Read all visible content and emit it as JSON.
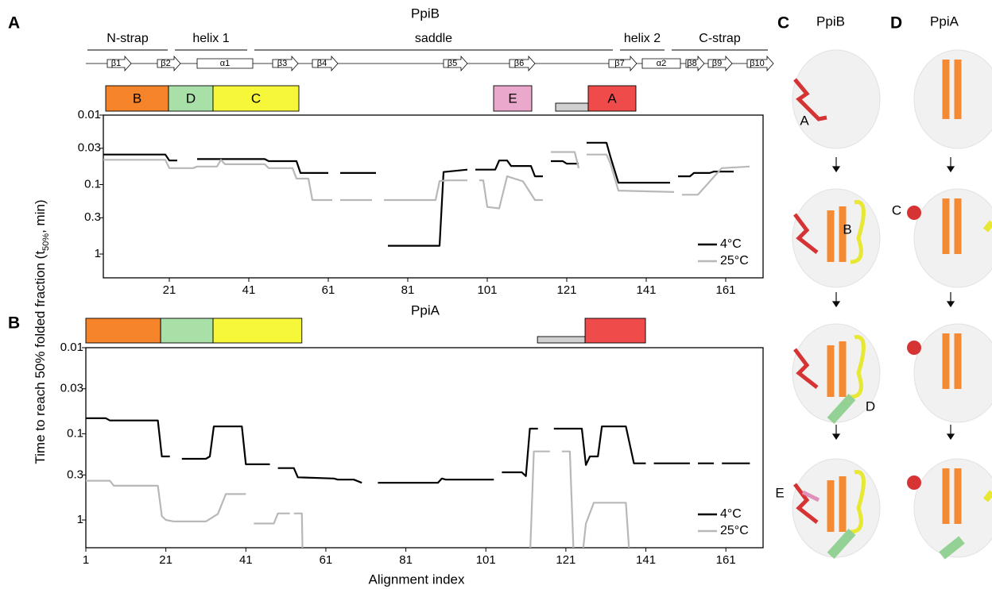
{
  "panel_labels": [
    "A",
    "B",
    "C",
    "D"
  ],
  "chart_data": [
    {
      "type": "line",
      "title": "PpiB",
      "xlabel": "PpiA",
      "ylabel": {
        "text": "Time to reach 50% folded fraction (t",
        "subscript": "50%",
        "suffix": ", min)"
      },
      "xlim": [
        4.4,
        170.4
      ],
      "xticks": [
        21,
        41,
        61,
        81,
        101,
        121,
        141,
        161
      ],
      "ylim": [
        0.01,
        2.2
      ],
      "yticks": [
        0.01,
        0.03,
        0.1,
        0.3,
        1
      ],
      "log_y": true,
      "invert_y": true,
      "legend": "lower right",
      "topology": {
        "domains": [
          {
            "label": "N-strap",
            "range": [
              0,
              21
            ]
          },
          {
            "label": "helix 1",
            "range": [
              22,
              41
            ]
          },
          {
            "label": "saddle",
            "range": [
              42,
              133
            ]
          },
          {
            "label": "helix 2",
            "range": [
              134,
              146
            ]
          },
          {
            "label": "C-strap",
            "range": [
              147,
              172
            ]
          }
        ],
        "elements": [
          {
            "label": "β1",
            "kind": "strand",
            "range": [
              5.4,
              11.4
            ]
          },
          {
            "label": "β2",
            "kind": "strand",
            "range": [
              18,
              23.8
            ]
          },
          {
            "label": "α1",
            "kind": "helix",
            "range": [
              28,
              42
            ]
          },
          {
            "label": "β3",
            "kind": "strand",
            "range": [
              47,
              53.4
            ]
          },
          {
            "label": "β4",
            "kind": "strand",
            "range": [
              57,
              63.4
            ]
          },
          {
            "label": "β5",
            "kind": "strand",
            "range": [
              90,
              96
            ]
          },
          {
            "label": "β6",
            "kind": "strand",
            "range": [
              106.6,
              113
            ]
          },
          {
            "label": "β7",
            "kind": "strand",
            "range": [
              131.6,
              138.6
            ]
          },
          {
            "label": "α2",
            "kind": "helix",
            "range": [
              140,
              149.6
            ]
          },
          {
            "label": "β8",
            "kind": "strand",
            "range": [
              151,
              155.6
            ]
          },
          {
            "label": "β9",
            "kind": "strand",
            "range": [
              156.6,
              162.6
            ]
          },
          {
            "label": "β10",
            "kind": "strand",
            "range": [
              166.4,
              173
            ]
          }
        ]
      },
      "foldons": [
        {
          "label": "B",
          "color": "#f5842a",
          "range": [
            5,
            20.8
          ]
        },
        {
          "label": "D",
          "color": "#a8e0a8",
          "range": [
            20.8,
            32
          ]
        },
        {
          "label": "C",
          "color": "#f7f73a",
          "range": [
            32,
            53.6
          ]
        },
        {
          "label": "E",
          "color": "#eaa8cc",
          "range": [
            102.6,
            112.2
          ]
        },
        {
          "color": "#d0d0d0",
          "range": [
            118.2,
            126.4
          ]
        },
        {
          "label": "A",
          "color": "#ef4b4b",
          "range": [
            126.4,
            138.4
          ]
        }
      ],
      "series": [
        {
          "name": "4°C",
          "color": "#000000",
          "x": [
            4,
            20,
            21,
            23,
            25,
            28,
            45,
            46,
            53,
            54,
            61,
            62,
            64,
            73,
            74.5,
            76,
            89,
            90,
            96,
            97,
            98,
            103,
            104,
            106,
            107,
            112,
            113,
            115,
            116,
            117,
            120,
            121,
            124,
            125,
            126,
            131,
            132,
            134,
            147,
            148,
            149,
            152,
            153,
            157,
            158,
            163
          ],
          "values": [
            0.037,
            0.037,
            0.045,
            0.045,
            null,
            0.043,
            0.043,
            0.046,
            0.046,
            0.068,
            0.068,
            null,
            0.068,
            0.068,
            null,
            0.76,
            0.76,
            0.066,
            0.061,
            null,
            0.061,
            0.061,
            0.045,
            0.045,
            0.054,
            0.054,
            0.076,
            0.076,
            null,
            0.046,
            0.046,
            0.05,
            0.05,
            null,
            0.025,
            0.025,
            0.04,
            0.094,
            0.094,
            null,
            0.076,
            0.076,
            0.068,
            0.068,
            0.065,
            0.065
          ]
        },
        {
          "name": "25°C",
          "color": "#b8b8b8",
          "x": [
            4,
            20,
            21,
            27,
            28,
            33,
            34,
            35,
            45,
            46,
            52,
            53,
            56,
            57,
            62,
            63,
            64,
            72,
            73.5,
            75,
            88,
            89,
            91,
            96,
            97.5,
            99,
            100,
            101,
            104,
            106,
            110,
            113,
            115,
            116,
            117,
            123,
            124,
            125,
            126,
            131,
            132,
            134,
            148,
            149,
            150,
            154,
            157,
            160,
            167
          ],
          "values": [
            0.044,
            0.044,
            0.058,
            0.058,
            0.055,
            0.055,
            0.044,
            0.051,
            0.051,
            0.058,
            0.058,
            0.082,
            0.082,
            0.167,
            0.167,
            null,
            0.167,
            0.167,
            null,
            0.167,
            0.167,
            0.089,
            0.087,
            0.087,
            null,
            0.087,
            0.087,
            0.21,
            0.22,
            0.076,
            0.09,
            0.167,
            0.167,
            null,
            0.034,
            0.034,
            0.058,
            null,
            0.037,
            0.037,
            0.05,
            0.122,
            0.128,
            null,
            0.14,
            0.14,
            0.09,
            0.058,
            0.055
          ]
        }
      ]
    },
    {
      "type": "line",
      "xlabel": "Alignment index",
      "xlim": [
        1,
        170.3
      ],
      "xticks": [
        1,
        21,
        41,
        61,
        81,
        101,
        121,
        141,
        161
      ],
      "ylim": [
        0.01,
        2.1
      ],
      "yticks": [
        0.01,
        0.03,
        0.1,
        0.3,
        1
      ],
      "log_y": true,
      "invert_y": true,
      "legend": "lower right",
      "foldons": [
        {
          "color": "#f5842a",
          "range": [
            1,
            19.7
          ]
        },
        {
          "color": "#a8e0a8",
          "range": [
            19.7,
            32.8
          ]
        },
        {
          "color": "#f7f73a",
          "range": [
            32.8,
            55
          ]
        },
        {
          "color": "#d0d0d0",
          "range": [
            113.9,
            125.8
          ]
        },
        {
          "color": "#ef4b4b",
          "range": [
            125.8,
            140.9
          ]
        }
      ],
      "series": [
        {
          "name": "4°C",
          "color": "#000000",
          "x": [
            1,
            6,
            7,
            19,
            20,
            22,
            23.5,
            25,
            31,
            32,
            33,
            40,
            41,
            47,
            48,
            49,
            53,
            54,
            63,
            64,
            68,
            70,
            72,
            74,
            89,
            90,
            91,
            103,
            104,
            105,
            110,
            111,
            112,
            114,
            116,
            118,
            124,
            125,
            126,
            127,
            129,
            130,
            136,
            138,
            141,
            142,
            143,
            152,
            153,
            154,
            158,
            159,
            160,
            167
          ],
          "values": [
            0.066,
            0.066,
            0.07,
            0.07,
            0.183,
            0.183,
            null,
            0.195,
            0.195,
            0.183,
            0.082,
            0.082,
            0.226,
            0.226,
            null,
            0.25,
            0.25,
            0.32,
            0.33,
            0.34,
            0.34,
            0.37,
            null,
            0.37,
            0.37,
            0.33,
            0.34,
            0.34,
            null,
            0.28,
            0.28,
            0.31,
            0.087,
            0.087,
            null,
            0.087,
            0.087,
            0.087,
            0.23,
            0.183,
            0.183,
            0.082,
            0.082,
            0.22,
            0.22,
            null,
            0.22,
            0.22,
            null,
            0.22,
            0.22,
            null,
            0.22,
            0.22
          ]
        },
        {
          "name": "25°C",
          "color": "#b8b8b8",
          "x": [
            1,
            7,
            8,
            19,
            20,
            21,
            23,
            31,
            34,
            36,
            41,
            42,
            43,
            48,
            49,
            52,
            52.5,
            53,
            55,
            55.2,
            83,
            112,
            113,
            117,
            118.5,
            120,
            122,
            123,
            124,
            125,
            126,
            128,
            136,
            137
          ],
          "values": [
            0.35,
            0.35,
            0.4,
            0.4,
            0.9,
            1.0,
            1.04,
            1.04,
            0.85,
            0.5,
            0.5,
            null,
            1.1,
            1.1,
            0.84,
            0.84,
            null,
            0.84,
            0.84,
            3,
            null,
            3,
            0.16,
            0.16,
            null,
            0.16,
            0.16,
            3,
            null,
            3,
            1.1,
            0.63,
            0.63,
            3
          ]
        }
      ]
    }
  ],
  "structures": {
    "C": {
      "title": "PpiB",
      "labels": [
        "A",
        "B",
        "C",
        "D",
        "E"
      ]
    },
    "D": {
      "title": "PpiA"
    }
  }
}
